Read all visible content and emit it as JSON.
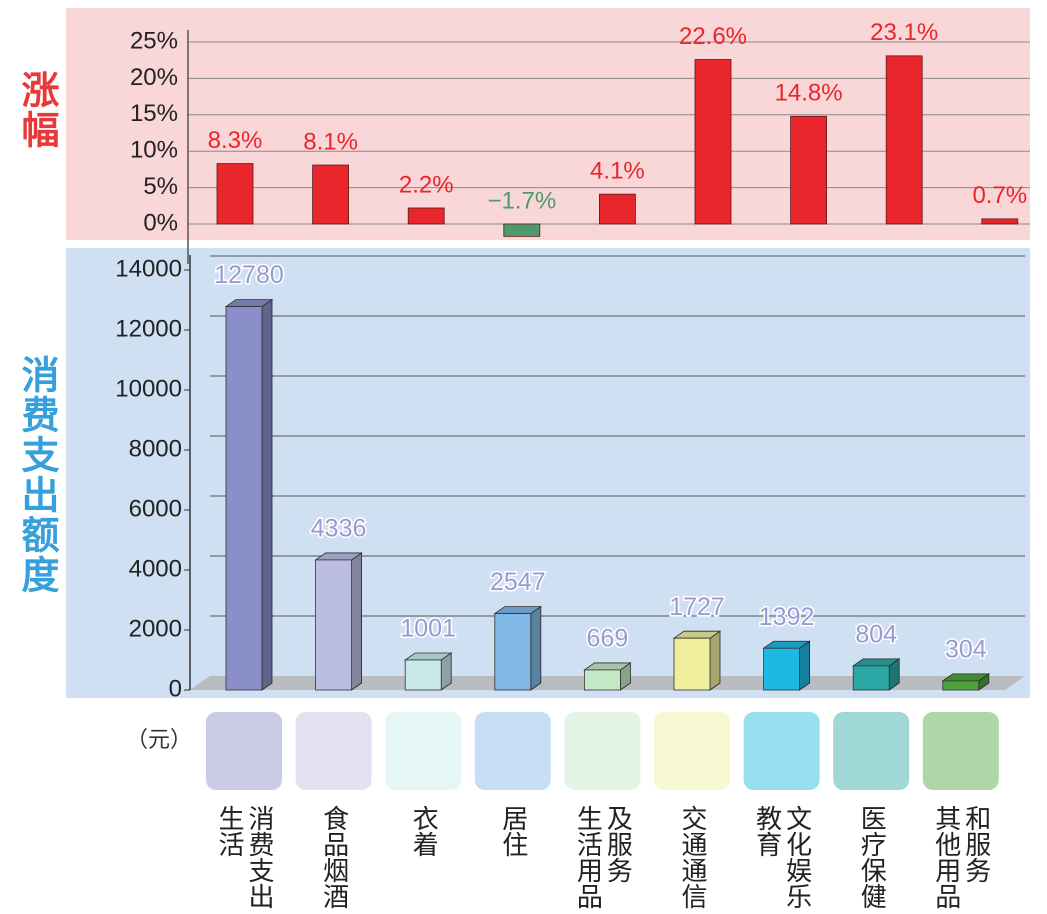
{
  "chart_data": [
    {
      "type": "bar",
      "y_label": "涨幅",
      "values": [
        8.3,
        8.1,
        2.2,
        -1.7,
        4.1,
        22.6,
        14.8,
        23.1,
        0.7
      ],
      "value_labels": [
        "8.3%",
        "8.1%",
        "2.2%",
        "−1.7%",
        "4.1%",
        "22.6%",
        "14.8%",
        "23.1%",
        "0.7%"
      ],
      "color": "#e8262b",
      "negative_color": "#4e9a6c",
      "ylim": [
        -2.2,
        29.4
      ],
      "yticks": [
        {
          "value": 0,
          "label": "0%"
        },
        {
          "value": 5,
          "label": "5%"
        },
        {
          "value": 10,
          "label": "10%"
        },
        {
          "value": 15,
          "label": "15%"
        },
        {
          "value": 20,
          "label": "20%"
        },
        {
          "value": 25,
          "label": "25%"
        }
      ],
      "grid": true
    },
    {
      "type": "bar3d",
      "y_label": "消费支出额度",
      "unit": "（元）",
      "categories": [
        "生活\n消费支出",
        "食品烟酒",
        "衣着",
        "居住",
        "生活用品\n及服务",
        "交通通信",
        "教育\n文化娱乐",
        "医疗保健",
        "其他用品\n和服务"
      ],
      "values": [
        12780,
        4336,
        1001,
        2547,
        669,
        1727,
        1392,
        804,
        304
      ],
      "colors": [
        "#8a8fc9",
        "#bcbde2",
        "#c8e8ea",
        "#80b9e6",
        "#c4e8c6",
        "#eeee9c",
        "#1cb9e2",
        "#2ba8a6",
        "#4ca33b"
      ],
      "ylim": [
        0,
        14500
      ],
      "yticks": [
        0,
        2000,
        4000,
        6000,
        8000,
        10000,
        12000,
        14000
      ],
      "grid": true
    }
  ]
}
